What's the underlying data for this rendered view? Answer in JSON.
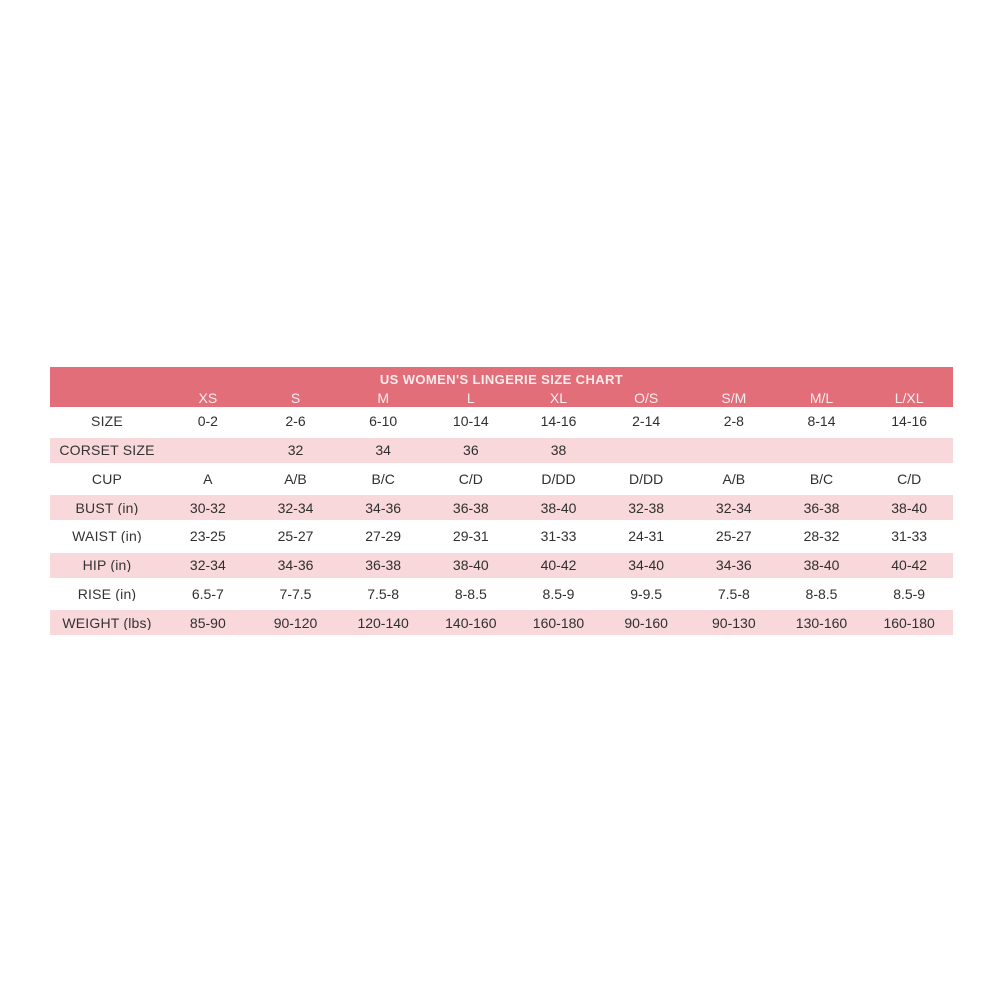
{
  "chart_data": {
    "type": "table",
    "title": "US WOMEN'S LINGERIE SIZE CHART",
    "columns": [
      "XS",
      "S",
      "M",
      "L",
      "XL",
      "O/S",
      "S/M",
      "M/L",
      "L/XL"
    ],
    "rows": [
      {
        "label": "SIZE",
        "values": [
          "0-2",
          "2-6",
          "6-10",
          "10-14",
          "14-16",
          "2-14",
          "2-8",
          "8-14",
          "14-16"
        ]
      },
      {
        "label": "CORSET SIZE",
        "values": [
          "",
          "32",
          "34",
          "36",
          "38",
          "",
          "",
          "",
          ""
        ]
      },
      {
        "label": "CUP",
        "values": [
          "A",
          "A/B",
          "B/C",
          "C/D",
          "D/DD",
          "D/DD",
          "A/B",
          "B/C",
          "C/D"
        ]
      },
      {
        "label": "BUST (in)",
        "values": [
          "30-32",
          "32-34",
          "34-36",
          "36-38",
          "38-40",
          "32-38",
          "32-34",
          "36-38",
          "38-40"
        ]
      },
      {
        "label": "WAIST (in)",
        "values": [
          "23-25",
          "25-27",
          "27-29",
          "29-31",
          "31-33",
          "24-31",
          "25-27",
          "28-32",
          "31-33"
        ]
      },
      {
        "label": "HIP (in)",
        "values": [
          "32-34",
          "34-36",
          "36-38",
          "38-40",
          "40-42",
          "34-40",
          "34-36",
          "38-40",
          "40-42"
        ]
      },
      {
        "label": "RISE (in)",
        "values": [
          "6.5-7",
          "7-7.5",
          "7.5-8",
          "8-8.5",
          "8.5-9",
          "9-9.5",
          "7.5-8",
          "8-8.5",
          "8.5-9"
        ]
      },
      {
        "label": "WEIGHT (lbs)",
        "values": [
          "85-90",
          "90-120",
          "120-140",
          "140-160",
          "160-180",
          "90-160",
          "90-130",
          "130-160",
          "160-180"
        ]
      }
    ],
    "layout": {
      "header_rows_shaded": true,
      "body_rows_alternate": "white/pink starting with white"
    }
  },
  "colors": {
    "header_bg": "#E16E79",
    "row_alt_bg": "#F9D8DB",
    "header_text": "#FBEDEE",
    "body_text": "#2F2F2F",
    "page_bg": "#FFFFFF"
  }
}
